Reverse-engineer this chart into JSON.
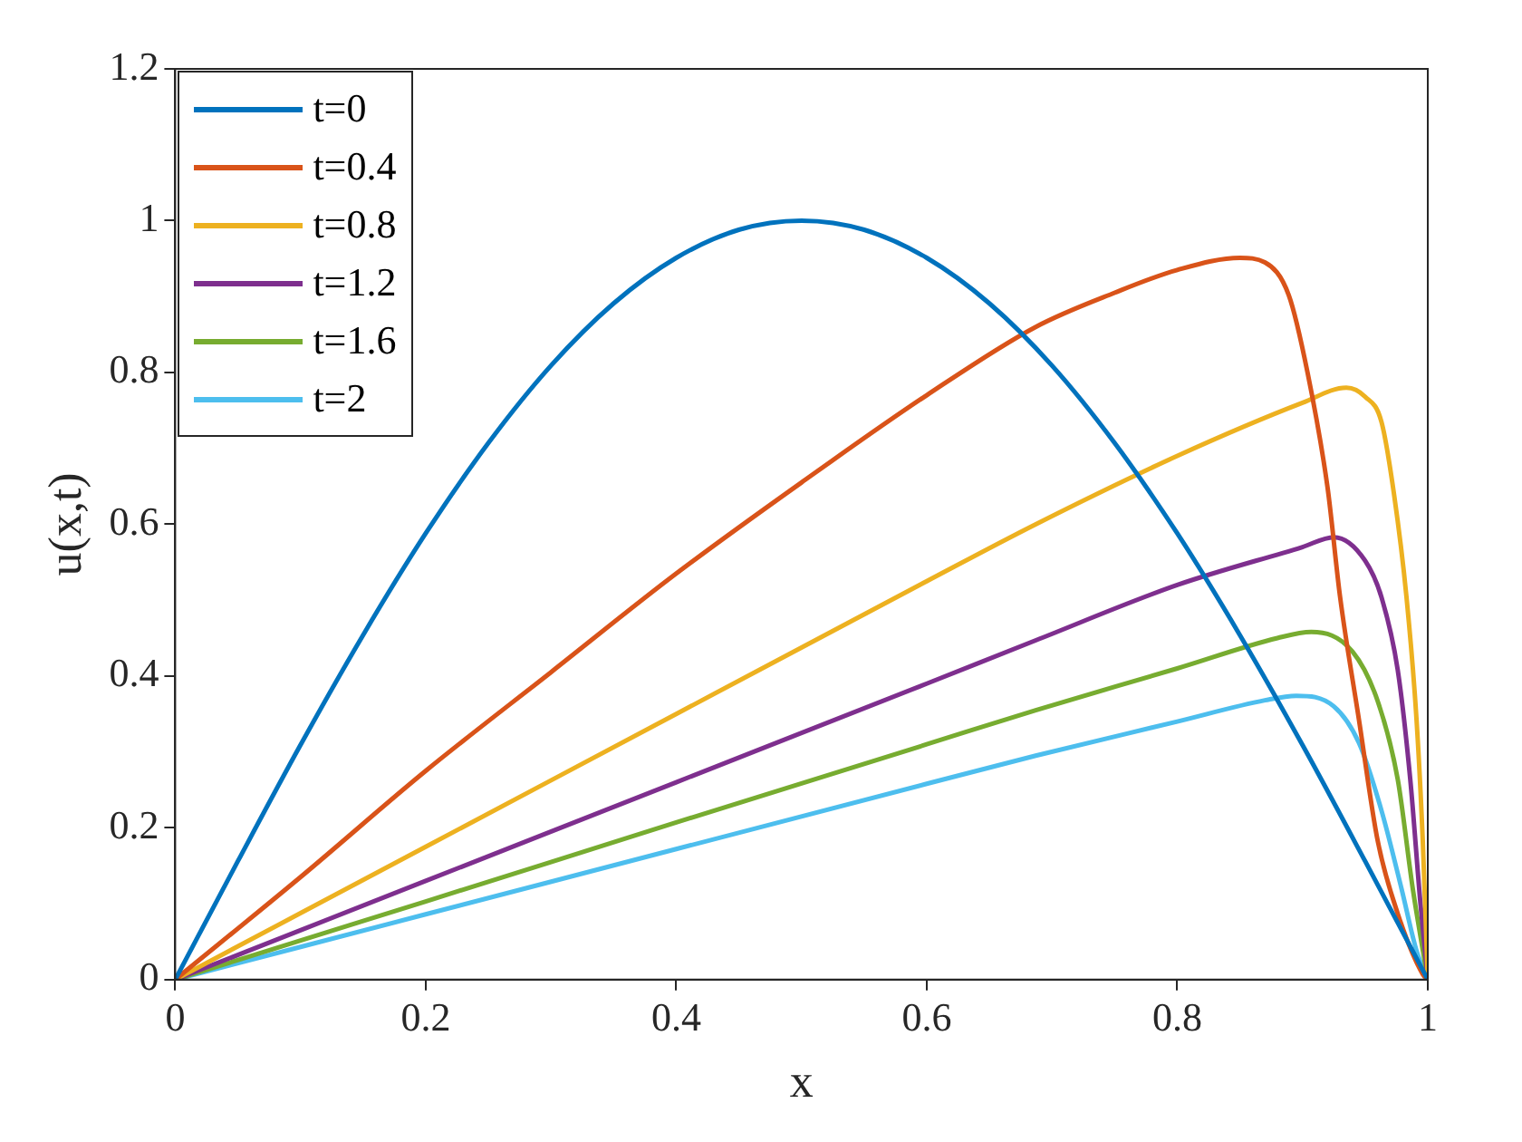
{
  "chart_data": {
    "type": "line",
    "xlabel": "x",
    "ylabel": "u(x,t)",
    "xlim": [
      0,
      1
    ],
    "ylim": [
      0,
      1.2
    ],
    "xticks": [
      0,
      0.2,
      0.4,
      0.6,
      0.8,
      1
    ],
    "yticks": [
      0,
      0.2,
      0.4,
      0.6,
      0.8,
      1,
      1.2
    ],
    "grid": false,
    "legend": "top left",
    "marker": "none",
    "line_style": "solid",
    "series": [
      {
        "name": "t=0",
        "color": "#0072bd",
        "x": [
          0,
          0.05,
          0.1,
          0.15,
          0.2,
          0.25,
          0.3,
          0.35,
          0.4,
          0.45,
          0.5,
          0.55,
          0.6,
          0.65,
          0.7,
          0.75,
          0.8,
          0.85,
          0.9,
          0.95,
          1
        ],
        "values": [
          0,
          0.156,
          0.309,
          0.454,
          0.588,
          0.707,
          0.809,
          0.891,
          0.951,
          0.988,
          1,
          0.988,
          0.951,
          0.891,
          0.809,
          0.707,
          0.588,
          0.454,
          0.309,
          0.156,
          0
        ]
      },
      {
        "name": "t=0.4",
        "color": "#d95319",
        "x": [
          0,
          0.1,
          0.2,
          0.3,
          0.4,
          0.5,
          0.6,
          0.687,
          0.75,
          0.8,
          0.85,
          0.87,
          0.889,
          0.904,
          0.92,
          0.93,
          0.945,
          0.96,
          0.976,
          0.996,
          1
        ],
        "values": [
          0,
          0.135,
          0.275,
          0.405,
          0.535,
          0.655,
          0.77,
          0.86,
          0.905,
          0.935,
          0.951,
          0.945,
          0.902,
          0.8,
          0.648,
          0.504,
          0.343,
          0.183,
          0.087,
          0.007,
          0
        ]
      },
      {
        "name": "t=0.8",
        "color": "#edb120",
        "x": [
          0,
          0.2,
          0.4,
          0.6,
          0.687,
          0.8,
          0.9,
          0.935,
          0.95,
          0.963,
          0.973,
          0.983,
          0.991,
          0.996,
          1
        ],
        "values": [
          0,
          0.175,
          0.35,
          0.525,
          0.6,
          0.69,
          0.76,
          0.78,
          0.768,
          0.735,
          0.64,
          0.504,
          0.343,
          0.183,
          0
        ]
      },
      {
        "name": "t=1.2",
        "color": "#7e2f8e",
        "x": [
          0,
          0.2,
          0.4,
          0.6,
          0.687,
          0.8,
          0.9,
          0.925,
          0.95,
          0.963,
          0.976,
          0.986,
          0.994,
          1
        ],
        "values": [
          0,
          0.13,
          0.26,
          0.39,
          0.447,
          0.52,
          0.57,
          0.583,
          0.552,
          0.504,
          0.408,
          0.264,
          0.103,
          0
        ]
      },
      {
        "name": "t=1.6",
        "color": "#77ac30",
        "x": [
          0,
          0.2,
          0.4,
          0.6,
          0.687,
          0.8,
          0.88,
          0.907,
          0.94,
          0.96,
          0.976,
          0.988,
          1
        ],
        "values": [
          0,
          0.103,
          0.207,
          0.31,
          0.355,
          0.41,
          0.45,
          0.458,
          0.432,
          0.367,
          0.264,
          0.12,
          0
        ]
      },
      {
        "name": "t=2",
        "color": "#4dbeee",
        "x": [
          0,
          0.2,
          0.4,
          0.6,
          0.687,
          0.8,
          0.87,
          0.895,
          0.925,
          0.945,
          0.963,
          0.979,
          0.991,
          1
        ],
        "values": [
          0,
          0.086,
          0.172,
          0.258,
          0.295,
          0.34,
          0.368,
          0.374,
          0.36,
          0.312,
          0.223,
          0.12,
          0.038,
          0
        ]
      }
    ]
  }
}
